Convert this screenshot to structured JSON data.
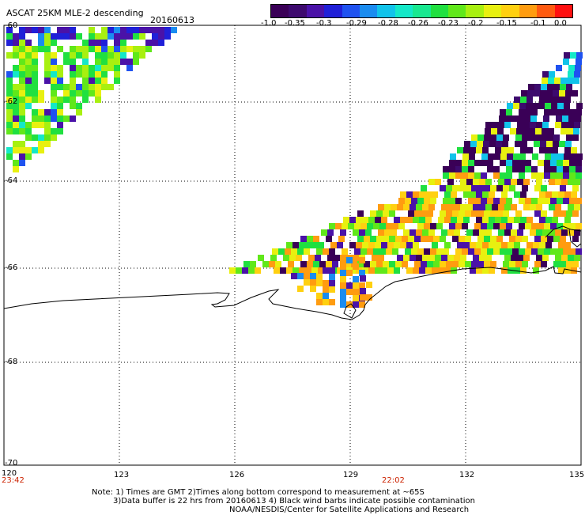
{
  "header": {
    "title": "ASCAT 25KM MLE-2 descending",
    "date": "20160613"
  },
  "colorbar": {
    "colors": [
      "#3a0057",
      "#3d0a6e",
      "#4a12a8",
      "#2020d8",
      "#1f52f0",
      "#1a8cf0",
      "#11c3ea",
      "#14e8c8",
      "#18e890",
      "#20e040",
      "#60e81a",
      "#a8f010",
      "#e8f010",
      "#ffd010",
      "#ff9c10",
      "#ff5a10",
      "#ff1010"
    ],
    "tick_labels": [
      "-1.0",
      "-0.35",
      "-0.3",
      "-0.29",
      "-0.28",
      "-0.26",
      "-0.23",
      "-0.2",
      "-0.15",
      "-0.1",
      "0.0"
    ]
  },
  "axes": {
    "lat_labels": [
      "-60",
      "-62",
      "-64",
      "-66",
      "-68",
      "-70"
    ],
    "lon_labels": [
      "120",
      "123",
      "126",
      "129",
      "132",
      "135"
    ],
    "time_left": "23:42",
    "time_mid": "22:02"
  },
  "footer": {
    "line1": "Note: 1) Times are GMT 2)Times along bottom correspond to measurement at ~65S",
    "line2": "3)Data buffer is 22 hrs from 20160613 4) Black wind barbs indicate possible contamination",
    "line3": "NOAA/NESDIS/Center for Satellite Applications and Research"
  }
}
